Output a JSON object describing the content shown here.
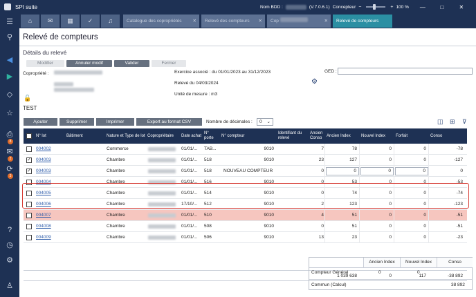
{
  "app": {
    "title": "SPI suite",
    "db_label": "Nom BDD :",
    "version": "(V.7.0.6.1)",
    "mode": "Concepteur",
    "zoom": "100 %",
    "close": "✕",
    "maximize": "□",
    "minimize": "—"
  },
  "sidebar": {
    "badges": [
      "8",
      "2",
      "3"
    ]
  },
  "tabs": [
    {
      "label": "Catalogue des copropriétés"
    },
    {
      "label": "Relevé des compteurs"
    },
    {
      "label": "Cop"
    },
    {
      "label": "Relevé de compteurs"
    }
  ],
  "page": {
    "title": "Relevé de compteurs",
    "section": "Détails du relevé"
  },
  "actions": {
    "modifier": "Modifier",
    "annuler": "Annuler modif",
    "valider": "Valider",
    "fermer": "Fermer"
  },
  "details": {
    "copropriete_label": "Copropriété :",
    "exercice": "Exercice associé : du 01/01/2023 au 31/12/2023",
    "releve": "Relevé du 04/03/2024",
    "unite": "Unité de mesure : m3",
    "ged_label": "GED :",
    "test": "TEST"
  },
  "toolbar": {
    "ajouter": "Ajouter",
    "supprimer": "Supprimer",
    "imprimer": "Imprimer",
    "export": "Export au format CSV",
    "decimales_label": "Nombre de décimales :",
    "decimales_value": "0"
  },
  "grid": {
    "headers": {
      "nlot": "N° lot",
      "batiment": "Bâtiment",
      "nature": "Nature et Type de lot",
      "coproprietaire": "Copropriétaire",
      "date": "Date achat",
      "porte": "N° porte",
      "compteur": "N° compteur",
      "identifiant": "Identifiant du relevé",
      "ancien_conso": "Ancien Conso",
      "ancien_index": "Ancien Index",
      "nouvel_index": "Nouvel Index",
      "forfait": "Forfait",
      "conso": "Conso"
    },
    "rows": [
      {
        "checked": "",
        "lot": "004002",
        "nature": "Commerce",
        "date": "01/01/...",
        "porte": "TAB...",
        "compteur": "9010",
        "ident": "",
        "anc_conso": "7",
        "anc_index": "78",
        "nouv_index": "0",
        "forfait": "0",
        "conso": "-78"
      },
      {
        "checked": "✓",
        "lot": "004003",
        "nature": "Chambre",
        "date": "01/01/...",
        "porte": "518",
        "compteur": "9010",
        "ident": "",
        "anc_conso": "23",
        "anc_index": "127",
        "nouv_index": "0",
        "forfait": "0",
        "conso": "-127"
      },
      {
        "checked": "✓",
        "lot": "004003",
        "nature": "Chambre",
        "date": "01/01/...",
        "porte": "518",
        "compteur": "NOUVEAU COMPTEUR",
        "ident": "",
        "anc_conso": "0",
        "anc_index": "0",
        "nouv_index": "0",
        "forfait": "0",
        "conso": "0"
      },
      {
        "checked": "",
        "lot": "004004",
        "nature": "Chambre",
        "date": "01/01/...",
        "porte": "516",
        "compteur": "9010",
        "ident": "",
        "anc_conso": "0",
        "anc_index": "53",
        "nouv_index": "0",
        "forfait": "0",
        "conso": "-53"
      },
      {
        "checked": "",
        "lot": "004005",
        "nature": "Chambre",
        "date": "01/01/...",
        "porte": "514",
        "compteur": "9010",
        "ident": "",
        "anc_conso": "0",
        "anc_index": "74",
        "nouv_index": "0",
        "forfait": "0",
        "conso": "-74"
      },
      {
        "checked": "",
        "lot": "004006",
        "nature": "Chambre",
        "date": "17/10/...",
        "porte": "512",
        "compteur": "9010",
        "ident": "",
        "anc_conso": "2",
        "anc_index": "123",
        "nouv_index": "0",
        "forfait": "0",
        "conso": "-123"
      },
      {
        "checked": "",
        "lot": "004007",
        "nature": "Chambre",
        "date": "01/01/...",
        "porte": "510",
        "compteur": "9010",
        "ident": "",
        "anc_conso": "4",
        "anc_index": "51",
        "nouv_index": "0",
        "forfait": "0",
        "conso": "-51"
      },
      {
        "checked": "",
        "lot": "004008",
        "nature": "Chambre",
        "date": "01/01/...",
        "porte": "508",
        "compteur": "9010",
        "ident": "",
        "anc_conso": "0",
        "anc_index": "51",
        "nouv_index": "0",
        "forfait": "0",
        "conso": "-51"
      },
      {
        "checked": "",
        "lot": "004009",
        "nature": "Chambre",
        "date": "01/01/...",
        "porte": "506",
        "compteur": "9010",
        "ident": "",
        "anc_conso": "13",
        "anc_index": "23",
        "nouv_index": "0",
        "forfait": "0",
        "conso": "-23"
      }
    ],
    "totals": {
      "anc_index": "1 039 638",
      "nouv_index": "0",
      "forfait": "117",
      "conso": "-38 892"
    }
  },
  "recap": {
    "headers": {
      "ancien": "Ancien Index",
      "nouvel": "Nouvel Index",
      "conso": "Conso"
    },
    "general_label": "Compteur Général",
    "general_ancien": "0",
    "general_nouvel": "0",
    "commun_label": "Commun (Calcul)",
    "commun_conso": "38 892"
  }
}
